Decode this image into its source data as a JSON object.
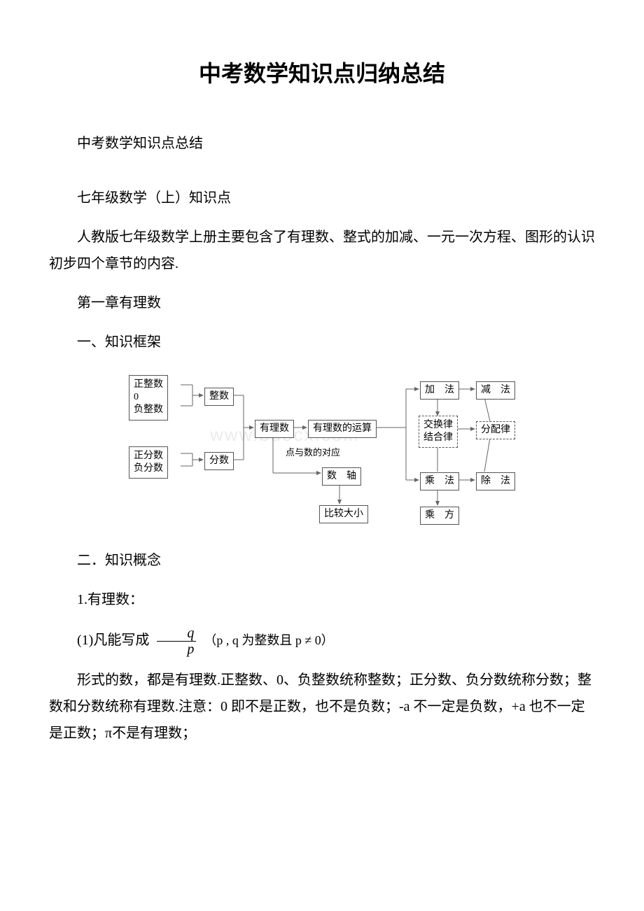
{
  "title": "中考数学知识点归纳总结",
  "p1": "中考数学知识点总结",
  "p2": "七年级数学（上）知识点",
  "p3": "人教版七年级数学上册主要包含了有理数、整式的加减、一元一次方程、图形的认识初步四个章节的内容.",
  "p4": "第一章有理数",
  "p5": "一、知识框架",
  "p6": "二．知识概念",
  "p7": "1.有理数：",
  "p8_prefix": "(1)凡能写成",
  "p8_cond": "（p , q 为整数且 p ≠ 0）",
  "p9": "形式的数，都是有理数.正整数、0、负整数统称整数；正分数、负分数统称分数；整数和分数统称有理数.注意：0 即不是正数，也不是负数；-a 不一定是负数，+a 也不一定是正数；π不是有理数；",
  "frac": {
    "num": "q",
    "den": "p"
  },
  "watermark": "www.bdocx.com",
  "diagram": {
    "boxes": {
      "intGroup": "正整数\n0\n负整数",
      "fracGroup": "正分数\n负分数",
      "integer": "整数",
      "fraction": "分数",
      "rational": "有理数",
      "operation": "有理数的运算",
      "axis": "数　轴",
      "compare": "比较大小",
      "add": "加　法",
      "sub": "减　法",
      "laws": "交换律\n结合律",
      "distrib": "分配律",
      "mul": "乘　法",
      "div": "除　法",
      "power": "乘　方"
    },
    "label_point": "点与数的对应",
    "colors": {
      "line": "#666",
      "box": "#666"
    }
  }
}
